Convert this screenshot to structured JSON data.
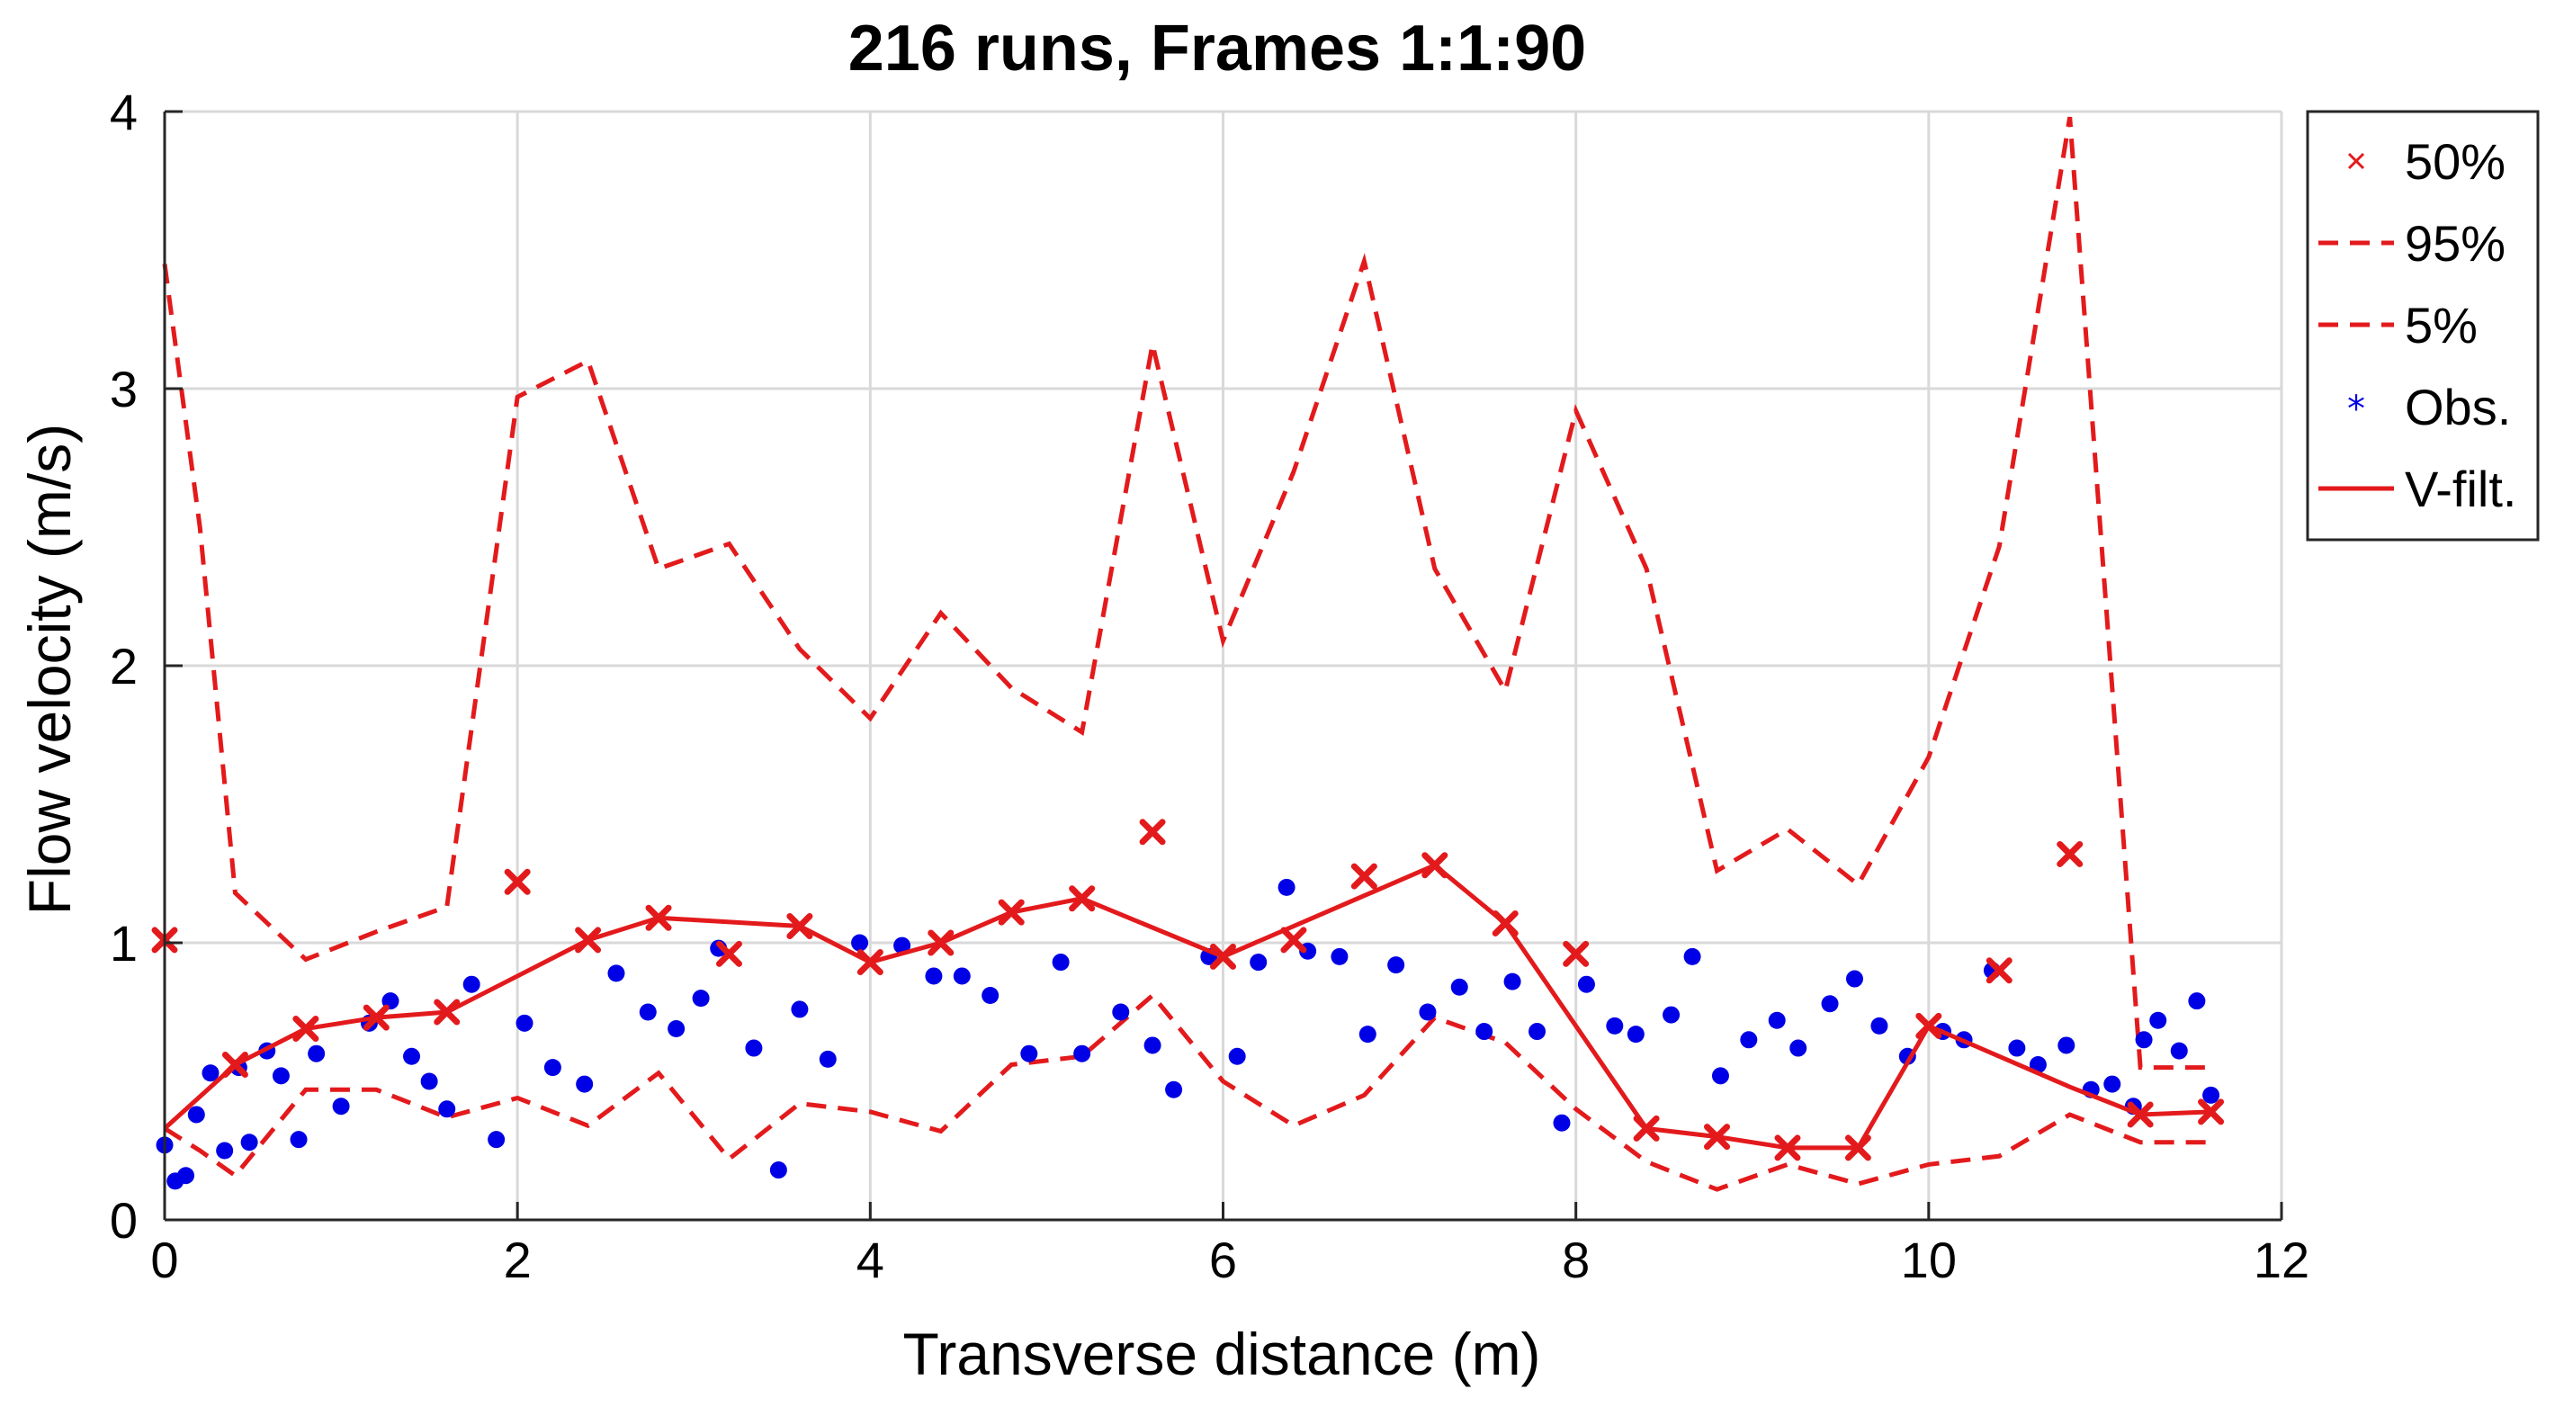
{
  "chart_data": {
    "type": "line",
    "title": "216 runs, Frames 1:1:90",
    "xlabel": "Transverse distance (m)",
    "ylabel": "Flow velocity (m/s)",
    "xlim": [
      0,
      12
    ],
    "ylim": [
      0,
      4
    ],
    "xticks": [
      0,
      2,
      4,
      6,
      8,
      10,
      12
    ],
    "yticks": [
      0,
      1,
      2,
      3,
      4
    ],
    "xtick_labels": [
      "0",
      "2",
      "4",
      "6",
      "8",
      "10",
      "12"
    ],
    "ytick_labels": [
      "0",
      "1",
      "2",
      "3",
      "4"
    ],
    "grid": true,
    "legend_position": "outside-right-top",
    "legend": [
      "50%",
      "95%",
      "5%",
      "Obs.",
      "V-filt."
    ],
    "series": [
      {
        "name": "50%",
        "style": "marker-x",
        "color": "#e31a1c",
        "x": [
          0,
          0.4,
          0.8,
          1.2,
          1.6,
          2.0,
          2.4,
          2.8,
          3.2,
          3.6,
          4.0,
          4.4,
          4.8,
          5.2,
          5.6,
          6.0,
          6.4,
          6.8,
          7.2,
          7.6,
          8.0,
          8.4,
          8.8,
          9.2,
          9.6,
          10.0,
          10.4,
          10.8,
          11.2,
          11.6
        ],
        "y": [
          1.01,
          0.56,
          0.69,
          0.73,
          0.75,
          1.22,
          1.01,
          1.09,
          0.96,
          1.06,
          0.93,
          1.0,
          1.11,
          1.16,
          1.4,
          0.95,
          1.01,
          1.24,
          1.28,
          1.07,
          0.96,
          0.33,
          0.3,
          0.26,
          0.26,
          0.7,
          0.9,
          1.32,
          0.38,
          0.39
        ]
      },
      {
        "name": "95%",
        "style": "dashed",
        "color": "#e31a1c",
        "x": [
          0,
          0.2,
          0.4,
          0.8,
          1.2,
          1.6,
          2.0,
          2.4,
          2.8,
          3.2,
          3.6,
          4.0,
          4.4,
          4.8,
          5.2,
          5.6,
          6.0,
          6.4,
          6.8,
          7.2,
          7.6,
          8.0,
          8.4,
          8.8,
          9.2,
          9.6,
          10.0,
          10.4,
          10.8,
          11.2,
          11.6
        ],
        "y": [
          3.45,
          2.5,
          1.18,
          0.94,
          1.04,
          1.13,
          2.97,
          3.1,
          2.35,
          2.44,
          2.06,
          1.81,
          2.19,
          1.92,
          1.76,
          3.16,
          2.09,
          2.7,
          3.46,
          2.35,
          1.91,
          2.92,
          2.35,
          1.26,
          1.41,
          1.21,
          1.67,
          2.43,
          3.98,
          0.55,
          0.55
        ]
      },
      {
        "name": "5%",
        "style": "dashed",
        "color": "#e31a1c",
        "x": [
          0,
          0.2,
          0.4,
          0.8,
          1.2,
          1.6,
          2.0,
          2.4,
          2.8,
          3.2,
          3.6,
          4.0,
          4.4,
          4.8,
          5.2,
          5.6,
          6.0,
          6.4,
          6.8,
          7.2,
          7.6,
          8.0,
          8.4,
          8.8,
          9.2,
          9.6,
          10.0,
          10.4,
          10.8,
          11.2,
          11.6
        ],
        "y": [
          0.33,
          0.25,
          0.16,
          0.47,
          0.47,
          0.37,
          0.44,
          0.34,
          0.53,
          0.22,
          0.42,
          0.39,
          0.32,
          0.56,
          0.59,
          0.81,
          0.5,
          0.34,
          0.45,
          0.73,
          0.64,
          0.4,
          0.21,
          0.11,
          0.2,
          0.13,
          0.2,
          0.23,
          0.38,
          0.28,
          0.28
        ]
      },
      {
        "name": "Obs.",
        "style": "marker-dot",
        "color": "#0000e6",
        "x": [
          0.0,
          0.06,
          0.12,
          0.18,
          0.26,
          0.34,
          0.42,
          0.48,
          0.58,
          0.66,
          0.76,
          0.86,
          1.0,
          1.16,
          1.28,
          1.4,
          1.5,
          1.6,
          1.74,
          1.88,
          2.04,
          2.2,
          2.38,
          2.56,
          2.74,
          2.9,
          3.04,
          3.14,
          3.34,
          3.48,
          3.6,
          3.76,
          3.94,
          4.18,
          4.36,
          4.52,
          4.68,
          4.9,
          5.08,
          5.2,
          5.42,
          5.6,
          5.72,
          5.92,
          6.08,
          6.2,
          6.36,
          6.48,
          6.66,
          6.82,
          6.98,
          7.16,
          7.34,
          7.48,
          7.64,
          7.78,
          7.92,
          8.06,
          8.22,
          8.34,
          8.54,
          8.66,
          8.82,
          8.98,
          9.14,
          9.26,
          9.44,
          9.58,
          9.72,
          9.88,
          10.08,
          10.2,
          10.36,
          10.5,
          10.62,
          10.78,
          10.92,
          11.04,
          11.16,
          11.22,
          11.3,
          11.42,
          11.52,
          11.6
        ],
        "y": [
          0.27,
          0.14,
          0.16,
          0.38,
          0.53,
          0.25,
          0.55,
          0.28,
          0.61,
          0.52,
          0.29,
          0.6,
          0.41,
          0.71,
          0.79,
          0.59,
          0.5,
          0.4,
          0.85,
          0.29,
          0.71,
          0.55,
          0.49,
          0.89,
          0.75,
          0.69,
          0.8,
          0.98,
          0.62,
          0.18,
          0.76,
          0.58,
          1.0,
          0.99,
          0.88,
          0.88,
          0.81,
          0.6,
          0.93,
          0.6,
          0.75,
          0.63,
          0.47,
          0.95,
          0.59,
          0.93,
          1.2,
          0.97,
          0.95,
          0.67,
          0.92,
          0.75,
          0.84,
          0.68,
          0.86,
          0.68,
          0.35,
          0.85,
          0.7,
          0.67,
          0.74,
          0.95,
          0.52,
          0.65,
          0.72,
          0.62,
          0.78,
          0.87,
          0.7,
          0.59,
          0.68,
          0.65,
          0.9,
          0.62,
          0.56,
          0.63,
          0.47,
          0.49,
          0.41,
          0.65,
          0.72,
          0.61,
          0.79,
          0.45
        ]
      },
      {
        "name": "V-filt.",
        "style": "solid",
        "color": "#e31a1c",
        "x": [
          0,
          0.4,
          0.8,
          1.2,
          1.6,
          2.4,
          2.8,
          3.6,
          4.0,
          4.4,
          4.8,
          5.2,
          6.0,
          7.2,
          7.6,
          8.4,
          8.8,
          9.2,
          9.6,
          10.0,
          10.8,
          11.2,
          11.6
        ],
        "y": [
          0.33,
          0.56,
          0.69,
          0.73,
          0.75,
          1.01,
          1.09,
          1.06,
          0.93,
          1.0,
          1.11,
          1.16,
          0.95,
          1.28,
          1.07,
          0.33,
          0.3,
          0.26,
          0.26,
          0.7,
          0.48,
          0.38,
          0.39
        ]
      }
    ],
    "colors": {
      "red": "#e31a1c",
      "blue": "#0000e6",
      "grid": "#d9d9d9"
    }
  }
}
